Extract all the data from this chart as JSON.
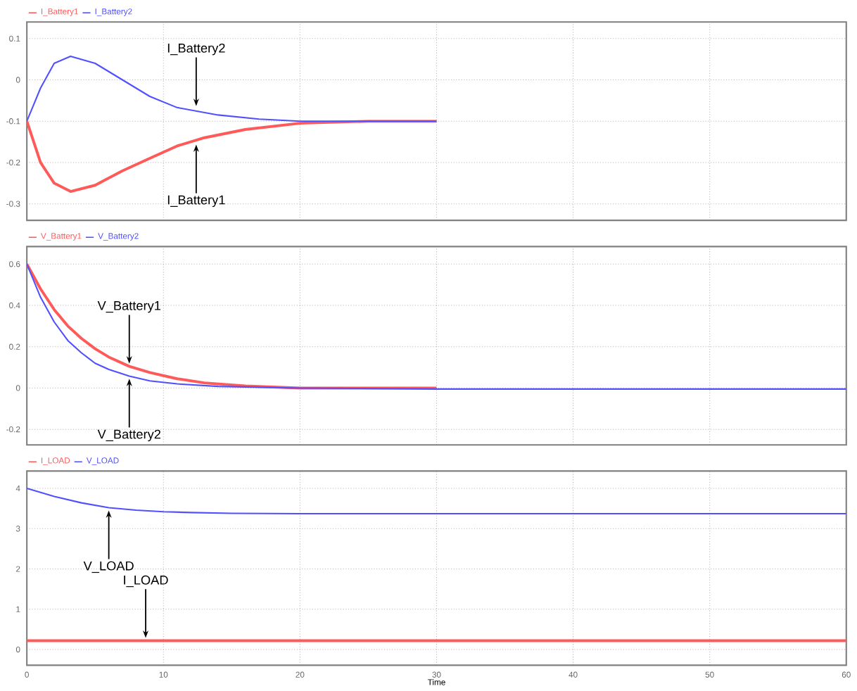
{
  "chart_data": [
    {
      "type": "line",
      "xlim": [
        0,
        60
      ],
      "ylim": [
        -0.34,
        0.14
      ],
      "xticks": [
        0,
        10,
        20,
        30,
        40,
        50,
        60
      ],
      "yticks": [
        -0.3,
        -0.2,
        -0.1,
        0,
        0.1
      ],
      "tick_labels": "y",
      "grid": true,
      "legend": "top left",
      "series": [
        {
          "name": "I_Battery1",
          "color": "#ff5a5a",
          "x": [
            0,
            1,
            2,
            3.2,
            5,
            7,
            9,
            11,
            13,
            16,
            20,
            25,
            30
          ],
          "values": [
            -0.1,
            -0.2,
            -0.25,
            -0.27,
            -0.255,
            -0.22,
            -0.19,
            -0.16,
            -0.14,
            -0.12,
            -0.105,
            -0.1,
            -0.1
          ]
        },
        {
          "name": "I_Battery2",
          "color": "#5050ff",
          "x": [
            0,
            1,
            2,
            3.2,
            5,
            7,
            9,
            11,
            14,
            17,
            20,
            30
          ],
          "values": [
            -0.1,
            -0.02,
            0.04,
            0.057,
            0.04,
            0.0,
            -0.04,
            -0.067,
            -0.085,
            -0.095,
            -0.1,
            -0.1
          ]
        }
      ],
      "annotations": [
        {
          "text": "I_Battery2",
          "x": 12.4,
          "y": -0.07
        },
        {
          "text": "I_Battery1",
          "x": 12.4,
          "y": -0.15
        }
      ]
    },
    {
      "type": "line",
      "xlim": [
        0,
        60
      ],
      "ylim": [
        -0.275,
        0.685
      ],
      "xticks": [
        0,
        10,
        20,
        30,
        40,
        50,
        60
      ],
      "yticks": [
        -0.2,
        0,
        0.2,
        0.4,
        0.6
      ],
      "tick_labels": "y",
      "grid": true,
      "legend": "top left",
      "series": [
        {
          "name": "V_Battery1",
          "color": "#ff5a5a",
          "x": [
            0,
            1,
            2,
            3,
            4,
            5,
            6,
            7.5,
            9,
            11,
            13,
            16,
            20,
            30
          ],
          "values": [
            0.6,
            0.48,
            0.38,
            0.3,
            0.24,
            0.19,
            0.15,
            0.105,
            0.075,
            0.045,
            0.025,
            0.01,
            0.0,
            0.0
          ]
        },
        {
          "name": "V_Battery2",
          "color": "#5050ff",
          "x": [
            0,
            1,
            2,
            3,
            4,
            5,
            6,
            7.5,
            9,
            11,
            14,
            20,
            30,
            60
          ],
          "values": [
            0.6,
            0.44,
            0.32,
            0.23,
            0.17,
            0.12,
            0.09,
            0.058,
            0.035,
            0.02,
            0.008,
            0.0,
            -0.005,
            -0.005
          ]
        }
      ],
      "annotations": [
        {
          "text": "V_Battery1",
          "x": 7.5,
          "y": 0.105
        },
        {
          "text": "V_Battery2",
          "x": 7.5,
          "y": 0.058
        }
      ]
    },
    {
      "type": "line",
      "xlim": [
        0,
        60
      ],
      "ylim": [
        -0.39,
        4.43
      ],
      "xticks": [
        0,
        10,
        20,
        30,
        40,
        50,
        60
      ],
      "yticks": [
        0,
        1,
        2,
        3,
        4
      ],
      "grid": true,
      "legend": "top left",
      "xlabel": "Time",
      "series": [
        {
          "name": "I_LOAD",
          "color": "#ff5a5a",
          "x": [
            0,
            60
          ],
          "values": [
            0.22,
            0.22
          ]
        },
        {
          "name": "V_LOAD",
          "color": "#5050ff",
          "x": [
            0,
            2,
            4,
            6,
            8,
            10,
            12,
            15,
            20,
            30,
            60
          ],
          "values": [
            4.0,
            3.8,
            3.64,
            3.52,
            3.46,
            3.42,
            3.4,
            3.38,
            3.37,
            3.37,
            3.37
          ]
        }
      ],
      "annotations": [
        {
          "text": "V_LOAD",
          "x": 6,
          "y": 3.52
        },
        {
          "text": "I_LOAD",
          "x": 8.7,
          "y": 0.22
        }
      ]
    }
  ]
}
